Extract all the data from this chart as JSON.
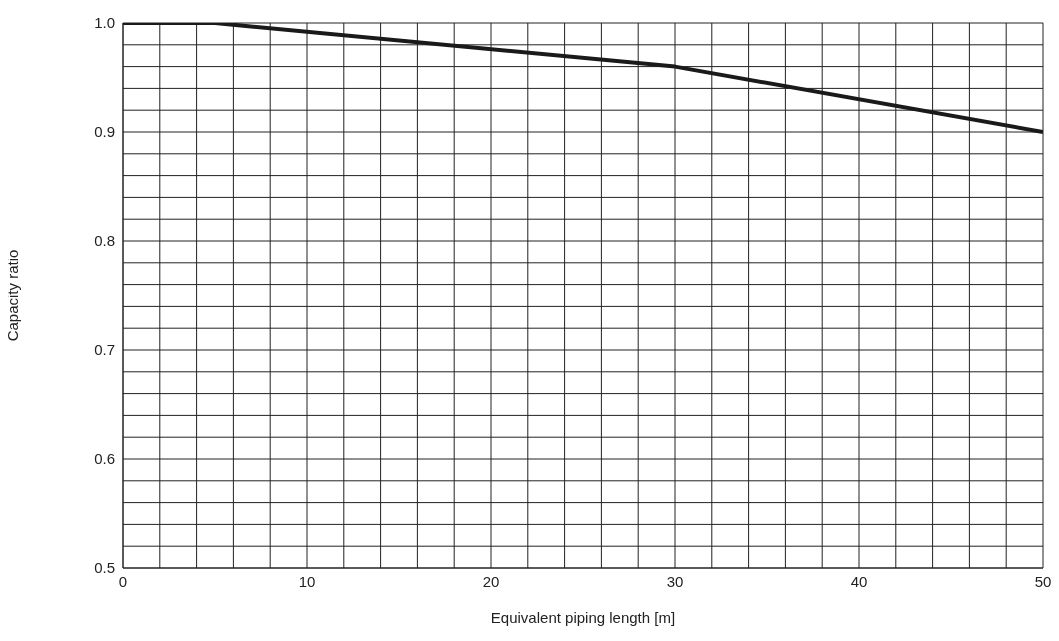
{
  "chart_data": {
    "type": "line",
    "xlabel": "Equivalent piping length [m]",
    "ylabel": "Capacity ratio",
    "x": [
      0,
      5,
      30,
      50
    ],
    "series": [
      {
        "color": "#1a1a1a",
        "values": [
          1.0,
          1.0,
          0.96,
          0.9
        ]
      }
    ],
    "xlim": [
      0,
      50
    ],
    "xticks": [
      0,
      {
        "value": 2,
        "label": null
      },
      {
        "value": 4,
        "label": null
      },
      {
        "value": 6,
        "label": null
      },
      {
        "value": 8,
        "label": null
      },
      10,
      {
        "value": 12,
        "label": null
      },
      {
        "value": 14,
        "label": null
      },
      {
        "value": 16,
        "label": null
      },
      {
        "value": 18,
        "label": null
      },
      20,
      {
        "value": 22,
        "label": null
      },
      {
        "value": 24,
        "label": null
      },
      {
        "value": 26,
        "label": null
      },
      {
        "value": 28,
        "label": null
      },
      30,
      {
        "value": 32,
        "label": null
      },
      {
        "value": 34,
        "label": null
      },
      {
        "value": 36,
        "label": null
      },
      {
        "value": 38,
        "label": null
      },
      40,
      {
        "value": 42,
        "label": null
      },
      {
        "value": 44,
        "label": null
      },
      {
        "value": 46,
        "label": null
      },
      {
        "value": 48,
        "label": null
      },
      50
    ],
    "ylim": [
      0.5,
      1.0
    ],
    "yticks": [
      {
        "value": 0.5,
        "label": "0.5"
      },
      {
        "value": 0.52,
        "label": null
      },
      {
        "value": 0.54,
        "label": null
      },
      {
        "value": 0.56,
        "label": null
      },
      {
        "value": 0.58,
        "label": null
      },
      {
        "value": 0.6,
        "label": "0.6"
      },
      {
        "value": 0.62,
        "label": null
      },
      {
        "value": 0.64,
        "label": null
      },
      {
        "value": 0.66,
        "label": null
      },
      {
        "value": 0.68,
        "label": null
      },
      {
        "value": 0.7,
        "label": "0.7"
      },
      {
        "value": 0.72,
        "label": null
      },
      {
        "value": 0.74,
        "label": null
      },
      {
        "value": 0.76,
        "label": null
      },
      {
        "value": 0.78,
        "label": null
      },
      {
        "value": 0.8,
        "label": "0.8"
      },
      {
        "value": 0.82,
        "label": null
      },
      {
        "value": 0.84,
        "label": null
      },
      {
        "value": 0.86,
        "label": null
      },
      {
        "value": 0.88,
        "label": null
      },
      {
        "value": 0.9,
        "label": "0.9"
      },
      {
        "value": 0.92,
        "label": null
      },
      {
        "value": 0.94,
        "label": null
      },
      {
        "value": 0.96,
        "label": null
      },
      {
        "value": 0.98,
        "label": null
      },
      {
        "value": 1.0,
        "label": "1.0"
      }
    ],
    "grid": true,
    "marker": "none",
    "line_style": "solid",
    "legend": false
  }
}
